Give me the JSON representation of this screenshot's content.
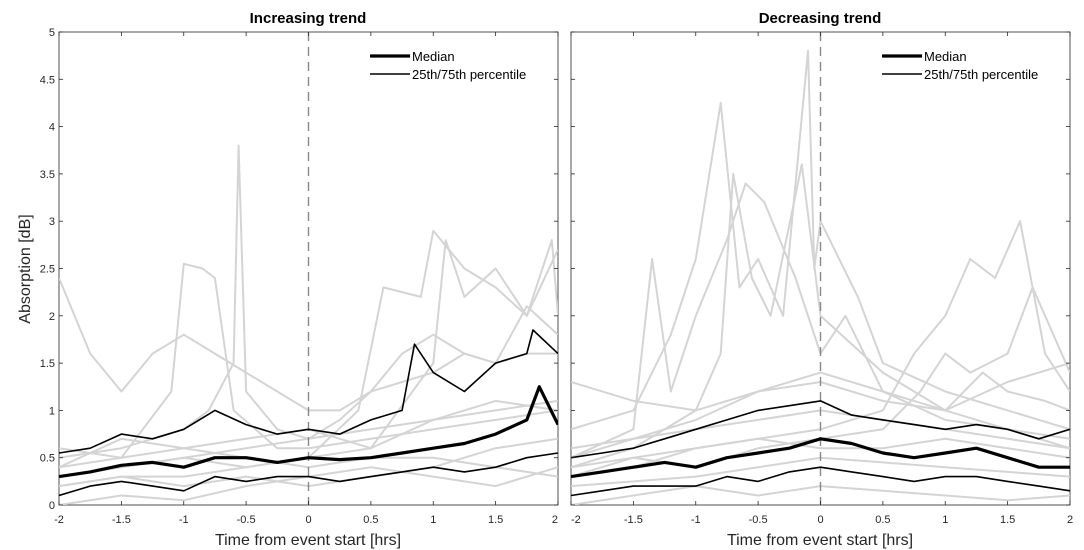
{
  "chart_data": [
    {
      "type": "line",
      "title": "Increasing trend",
      "xlabel": "Time from event start [hrs]",
      "ylabel": "Absorption [dB]",
      "xlim": [
        -2,
        2
      ],
      "ylim": [
        0,
        5
      ],
      "xticks": [
        -2,
        -1.5,
        -1,
        -0.5,
        0,
        0.5,
        1,
        1.5,
        2
      ],
      "xtick_labels": [
        "-2",
        "-1.5",
        "-1",
        "-0.5",
        "0",
        "0.5",
        "1",
        "1.5",
        "2"
      ],
      "yticks": [
        0,
        0.5,
        1,
        1.5,
        2,
        2.5,
        3,
        3.5,
        4,
        4.5,
        5
      ],
      "ytick_labels": [
        "0",
        "0.5",
        "1",
        "1.5",
        "2",
        "2.5",
        "3",
        "3.5",
        "4",
        "4.5",
        "5"
      ],
      "event_line_x": 0,
      "legend": {
        "placement": "top-right",
        "entries": [
          "Median",
          "25th/75th percentile"
        ]
      },
      "series": [
        {
          "name": "Median",
          "role": "median",
          "x": [
            -2,
            -1.75,
            -1.5,
            -1.25,
            -1,
            -0.75,
            -0.5,
            -0.25,
            0,
            0.25,
            0.5,
            0.75,
            1,
            1.25,
            1.5,
            1.75,
            1.85,
            2
          ],
          "values": [
            0.3,
            0.35,
            0.42,
            0.45,
            0.4,
            0.5,
            0.5,
            0.45,
            0.5,
            0.48,
            0.5,
            0.55,
            0.6,
            0.65,
            0.75,
            0.9,
            1.25,
            0.85
          ]
        },
        {
          "name": "75th percentile",
          "role": "percentile",
          "x": [
            -2,
            -1.75,
            -1.5,
            -1.25,
            -1,
            -0.75,
            -0.5,
            -0.25,
            0,
            0.25,
            0.5,
            0.75,
            0.85,
            1,
            1.25,
            1.5,
            1.75,
            1.8,
            2
          ],
          "values": [
            0.55,
            0.6,
            0.75,
            0.7,
            0.8,
            1.0,
            0.85,
            0.75,
            0.8,
            0.75,
            0.9,
            1.0,
            1.7,
            1.4,
            1.2,
            1.5,
            1.6,
            1.85,
            1.6
          ]
        },
        {
          "name": "25th percentile",
          "role": "percentile",
          "x": [
            -2,
            -1.75,
            -1.5,
            -1.25,
            -1,
            -0.75,
            -0.5,
            -0.25,
            0,
            0.25,
            0.5,
            0.75,
            1,
            1.25,
            1.5,
            1.75,
            2
          ],
          "values": [
            0.1,
            0.2,
            0.25,
            0.2,
            0.15,
            0.3,
            0.25,
            0.3,
            0.3,
            0.25,
            0.3,
            0.35,
            0.4,
            0.35,
            0.4,
            0.5,
            0.55
          ]
        },
        {
          "role": "individual",
          "x": [
            -2,
            -1.75,
            -1.5,
            -1.25,
            -1,
            -0.75,
            -0.5,
            -0.25,
            0,
            0.25,
            0.5,
            0.75,
            1,
            1.25,
            1.5,
            1.75,
            2
          ],
          "values": [
            2.4,
            1.6,
            1.2,
            1.6,
            1.8,
            1.6,
            1.4,
            1.2,
            1.0,
            1.0,
            1.2,
            1.3,
            1.4,
            1.6,
            1.5,
            1.6,
            1.6
          ]
        },
        {
          "role": "individual",
          "x": [
            -2,
            -1.5,
            -1,
            -0.8,
            -0.6,
            -0.56,
            -0.5,
            -0.25,
            0,
            0.5,
            1,
            1.5,
            2
          ],
          "values": [
            0.5,
            0.6,
            0.8,
            1.0,
            1.5,
            3.8,
            1.2,
            0.8,
            0.7,
            0.8,
            0.9,
            1.0,
            1.1
          ]
        },
        {
          "role": "individual",
          "x": [
            -2,
            -1.5,
            -1.1,
            -1.0,
            -0.85,
            -0.75,
            -0.6,
            -0.25,
            0,
            0.5,
            1,
            1.5,
            2
          ],
          "values": [
            0.4,
            0.5,
            1.2,
            2.55,
            2.5,
            2.4,
            1.0,
            0.6,
            0.6,
            0.7,
            0.8,
            0.9,
            1.0
          ]
        },
        {
          "role": "individual",
          "x": [
            -2,
            -1.5,
            -1,
            -0.5,
            0,
            0.4,
            0.6,
            0.9,
            1.0,
            1.25,
            1.5,
            1.75,
            2
          ],
          "values": [
            0.3,
            0.4,
            0.5,
            0.4,
            0.5,
            1.0,
            2.3,
            2.2,
            2.9,
            2.5,
            2.3,
            2.0,
            2.7
          ]
        },
        {
          "role": "individual",
          "x": [
            -2,
            -1.5,
            -1,
            -0.5,
            0,
            0.5,
            1,
            1.1,
            1.25,
            1.5,
            1.75,
            1.95,
            2
          ],
          "values": [
            0.2,
            0.3,
            0.3,
            0.4,
            0.5,
            0.6,
            1.5,
            2.8,
            2.2,
            2.5,
            2.0,
            2.8,
            2.0
          ]
        },
        {
          "role": "individual",
          "x": [
            -2,
            -1.5,
            -1,
            -0.5,
            0,
            0.25,
            0.5,
            0.75,
            1,
            1.25,
            1.5,
            1.75,
            2
          ],
          "values": [
            0.3,
            0.4,
            0.5,
            0.6,
            0.7,
            0.9,
            1.2,
            1.6,
            1.8,
            1.6,
            1.5,
            2.1,
            1.8
          ]
        },
        {
          "role": "individual",
          "x": [
            -2,
            -1.5,
            -1,
            -0.5,
            0,
            0.5,
            1,
            1.5,
            2
          ],
          "values": [
            0.0,
            0.1,
            0.05,
            0.2,
            0.3,
            0.4,
            0.3,
            0.2,
            0.4
          ]
        },
        {
          "role": "individual",
          "x": [
            -2,
            -1.5,
            -1,
            -0.5,
            0,
            0.5,
            1,
            1.5,
            2
          ],
          "values": [
            0.6,
            0.5,
            0.6,
            0.7,
            0.8,
            0.6,
            0.9,
            1.1,
            1.0
          ]
        },
        {
          "role": "individual",
          "x": [
            -2,
            -1.5,
            -1,
            -0.5,
            0,
            0.5,
            1,
            1.5,
            2
          ],
          "values": [
            0.2,
            0.3,
            0.2,
            0.3,
            0.2,
            0.3,
            0.4,
            0.6,
            0.7
          ]
        },
        {
          "role": "individual",
          "x": [
            -2,
            -1.5,
            -1,
            -0.5,
            0,
            0.5,
            1,
            1.5,
            2
          ],
          "values": [
            0.4,
            0.7,
            0.6,
            0.5,
            0.4,
            0.5,
            0.5,
            0.4,
            0.3
          ]
        }
      ]
    },
    {
      "type": "line",
      "title": "Decreasing trend",
      "xlabel": "Time from event start [hrs]",
      "ylabel": "",
      "xlim": [
        -2,
        2
      ],
      "ylim": [
        0,
        5
      ],
      "xticks": [
        -2,
        -1.5,
        -1,
        -0.5,
        0,
        0.5,
        1,
        1.5,
        2
      ],
      "xtick_labels": [
        "-2",
        "-1.5",
        "-1",
        "-0.5",
        "0",
        "0.5",
        "1",
        "1.5",
        "2"
      ],
      "yticks": [
        0,
        0.5,
        1,
        1.5,
        2,
        2.5,
        3,
        3.5,
        4,
        4.5,
        5
      ],
      "ytick_labels": [],
      "event_line_x": 0,
      "legend": {
        "placement": "top-right",
        "entries": [
          "Median",
          "25th/75th percentile"
        ]
      },
      "series": [
        {
          "name": "Median",
          "role": "median",
          "x": [
            -2,
            -1.75,
            -1.5,
            -1.25,
            -1,
            -0.75,
            -0.5,
            -0.25,
            0,
            0.25,
            0.5,
            0.75,
            1,
            1.25,
            1.5,
            1.75,
            2
          ],
          "values": [
            0.3,
            0.35,
            0.4,
            0.45,
            0.4,
            0.5,
            0.55,
            0.6,
            0.7,
            0.65,
            0.55,
            0.5,
            0.55,
            0.6,
            0.5,
            0.4,
            0.4
          ]
        },
        {
          "name": "75th percentile",
          "role": "percentile",
          "x": [
            -2,
            -1.75,
            -1.5,
            -1.25,
            -1,
            -0.75,
            -0.5,
            -0.25,
            0,
            0.25,
            0.5,
            0.75,
            1,
            1.25,
            1.5,
            1.75,
            2
          ],
          "values": [
            0.5,
            0.55,
            0.6,
            0.7,
            0.8,
            0.9,
            1.0,
            1.05,
            1.1,
            0.95,
            0.9,
            0.85,
            0.8,
            0.85,
            0.8,
            0.7,
            0.8
          ]
        },
        {
          "name": "25th percentile",
          "role": "percentile",
          "x": [
            -2,
            -1.75,
            -1.5,
            -1.25,
            -1,
            -0.75,
            -0.5,
            -0.25,
            0,
            0.25,
            0.5,
            0.75,
            1,
            1.25,
            1.5,
            1.75,
            2
          ],
          "values": [
            0.1,
            0.15,
            0.2,
            0.2,
            0.2,
            0.3,
            0.25,
            0.35,
            0.4,
            0.35,
            0.3,
            0.25,
            0.3,
            0.3,
            0.25,
            0.2,
            0.15
          ]
        },
        {
          "role": "individual",
          "x": [
            -2,
            -1.5,
            -1.2,
            -1,
            -0.8,
            -0.65,
            -0.5,
            -0.3,
            -0.1,
            -0.05,
            0,
            0.3,
            0.5,
            1,
            1.5,
            2
          ],
          "values": [
            0.8,
            1.0,
            1.8,
            2.6,
            4.25,
            2.3,
            2.6,
            2.0,
            4.8,
            2.5,
            3.0,
            2.2,
            1.5,
            1.2,
            1.0,
            0.8
          ]
        },
        {
          "role": "individual",
          "x": [
            -2,
            -1.5,
            -1.35,
            -1.2,
            -1,
            -0.75,
            -0.6,
            -0.45,
            -0.2,
            0,
            0.2,
            0.5,
            1,
            1.5,
            2
          ],
          "values": [
            0.5,
            0.8,
            2.6,
            1.2,
            2.0,
            2.8,
            3.4,
            3.2,
            2.4,
            1.6,
            2.0,
            1.2,
            0.9,
            0.8,
            0.7
          ]
        },
        {
          "role": "individual",
          "x": [
            -2,
            -1.5,
            -1,
            -0.8,
            -0.7,
            -0.55,
            -0.4,
            -0.15,
            0,
            0.5,
            1,
            1.5,
            2
          ],
          "values": [
            0.4,
            0.6,
            1.0,
            1.6,
            3.5,
            2.4,
            2.0,
            3.6,
            2.0,
            1.4,
            1.0,
            0.8,
            0.6
          ]
        },
        {
          "role": "individual",
          "x": [
            -2,
            -1.5,
            -1,
            -0.5,
            0,
            0.5,
            0.75,
            1,
            1.2,
            1.4,
            1.6,
            1.8,
            2
          ],
          "values": [
            0.3,
            0.4,
            0.6,
            0.7,
            0.8,
            1.0,
            1.6,
            2.0,
            2.6,
            2.4,
            3.0,
            1.6,
            1.2
          ]
        },
        {
          "role": "individual",
          "x": [
            -2,
            -1.5,
            -1,
            -0.5,
            0,
            0.5,
            0.8,
            1,
            1.2,
            1.5,
            1.7,
            2
          ],
          "values": [
            0.3,
            0.5,
            0.4,
            0.6,
            0.7,
            0.8,
            1.2,
            1.6,
            1.4,
            1.6,
            2.3,
            1.4
          ]
        },
        {
          "role": "individual",
          "x": [
            -2,
            -1.5,
            -1,
            -0.5,
            0,
            0.5,
            1,
            1.3,
            1.5,
            1.8,
            2
          ],
          "values": [
            0.5,
            0.7,
            0.9,
            1.2,
            1.3,
            1.1,
            1.0,
            1.4,
            1.2,
            1.1,
            1.0
          ]
        },
        {
          "role": "individual",
          "x": [
            -2,
            -1.5,
            -1,
            -0.5,
            0,
            0.5,
            1,
            1.5,
            2
          ],
          "values": [
            0.0,
            0.1,
            0.2,
            0.1,
            0.2,
            0.15,
            0.1,
            0.05,
            0.1
          ]
        },
        {
          "role": "individual",
          "x": [
            -2,
            -1.5,
            -1,
            -0.5,
            0,
            0.5,
            1,
            1.5,
            2
          ],
          "values": [
            0.6,
            0.7,
            0.8,
            0.9,
            1.0,
            0.9,
            0.8,
            0.7,
            0.6
          ]
        },
        {
          "role": "individual",
          "x": [
            -2,
            -1.5,
            -1,
            -0.5,
            0,
            0.5,
            1,
            1.5,
            2
          ],
          "values": [
            0.2,
            0.25,
            0.3,
            0.4,
            0.5,
            0.45,
            0.4,
            0.35,
            0.3
          ]
        },
        {
          "role": "individual",
          "x": [
            -2,
            -1.5,
            -1,
            -0.5,
            0,
            0.5,
            1,
            1.5,
            2
          ],
          "values": [
            0.4,
            0.5,
            0.6,
            0.7,
            0.6,
            0.6,
            0.7,
            0.6,
            0.5
          ]
        },
        {
          "role": "individual",
          "x": [
            -2,
            -1.5,
            -1,
            -0.5,
            0,
            0.5,
            1,
            1.5,
            2
          ],
          "values": [
            1.3,
            1.1,
            1.0,
            1.2,
            1.4,
            1.2,
            1.0,
            1.3,
            1.5
          ]
        }
      ]
    }
  ],
  "colors": {
    "median": "#000000",
    "percentile": "#000000",
    "individual": "#d4d4d4",
    "event_line": "#888888",
    "axes": "#262626"
  }
}
